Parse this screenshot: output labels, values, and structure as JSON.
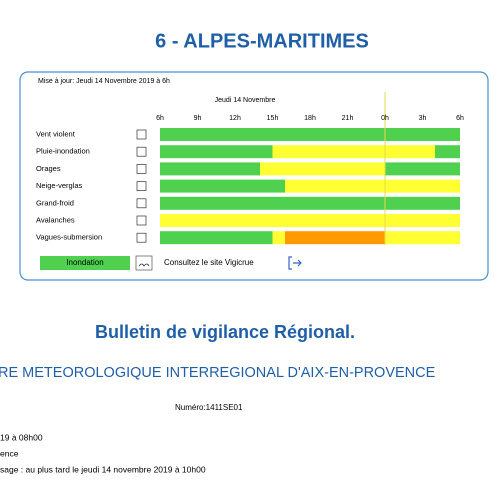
{
  "header": {
    "title": "6 - ALPES-MARITIMES"
  },
  "panel": {
    "update": "Mise à jour: Jeudi 14 Novembre 2019 à 6h",
    "day": "Jeudi 14 Novembre",
    "hours": [
      "6h",
      "9h",
      "12h",
      "15h",
      "18h",
      "21h",
      "0h",
      "3h",
      "6h"
    ],
    "span": [
      0,
      24
    ],
    "colors": {
      "green": "#4fd14f",
      "yellow": "#ffff33",
      "orange": "#ff9a00"
    },
    "rows": [
      {
        "label": "Vent violent",
        "segments": [
          {
            "level": "green",
            "start": 0,
            "end": 24
          }
        ]
      },
      {
        "label": "Pluie-inondation",
        "segments": [
          {
            "level": "green",
            "start": 0,
            "end": 9
          },
          {
            "level": "yellow",
            "start": 9,
            "end": 22
          },
          {
            "level": "green",
            "start": 22,
            "end": 24
          }
        ]
      },
      {
        "label": "Orages",
        "segments": [
          {
            "level": "green",
            "start": 0,
            "end": 8
          },
          {
            "level": "yellow",
            "start": 8,
            "end": 18
          },
          {
            "level": "green",
            "start": 18,
            "end": 24
          }
        ]
      },
      {
        "label": "Neige-verglas",
        "segments": [
          {
            "level": "green",
            "start": 0,
            "end": 10
          },
          {
            "level": "yellow",
            "start": 10,
            "end": 24
          }
        ]
      },
      {
        "label": "Grand-froid",
        "segments": [
          {
            "level": "green",
            "start": 0,
            "end": 24
          }
        ]
      },
      {
        "label": "Avalanches",
        "segments": [
          {
            "level": "yellow",
            "start": 0,
            "end": 24
          }
        ]
      },
      {
        "label": "Vagues-submersion",
        "segments": [
          {
            "level": "green",
            "start": 0,
            "end": 9
          },
          {
            "level": "yellow",
            "start": 9,
            "end": 10
          },
          {
            "level": "orange",
            "start": 10,
            "end": 18
          },
          {
            "level": "yellow",
            "start": 18,
            "end": 24
          }
        ]
      }
    ],
    "legend": {
      "label": "Inondation",
      "link": "Consultez le site Vigicrue"
    }
  },
  "bulletin": {
    "title": "Bulletin de vigilance Régional.",
    "center": "RE METEOROLOGIQUE INTERREGIONAL D'AIX-EN-PROVENCE",
    "number": "Numéro:1411SE01",
    "lines": [
      "19 à 08h00",
      "ence",
      "sage : au plus tard le jeudi 14 novembre 2019 à 10h00"
    ]
  }
}
